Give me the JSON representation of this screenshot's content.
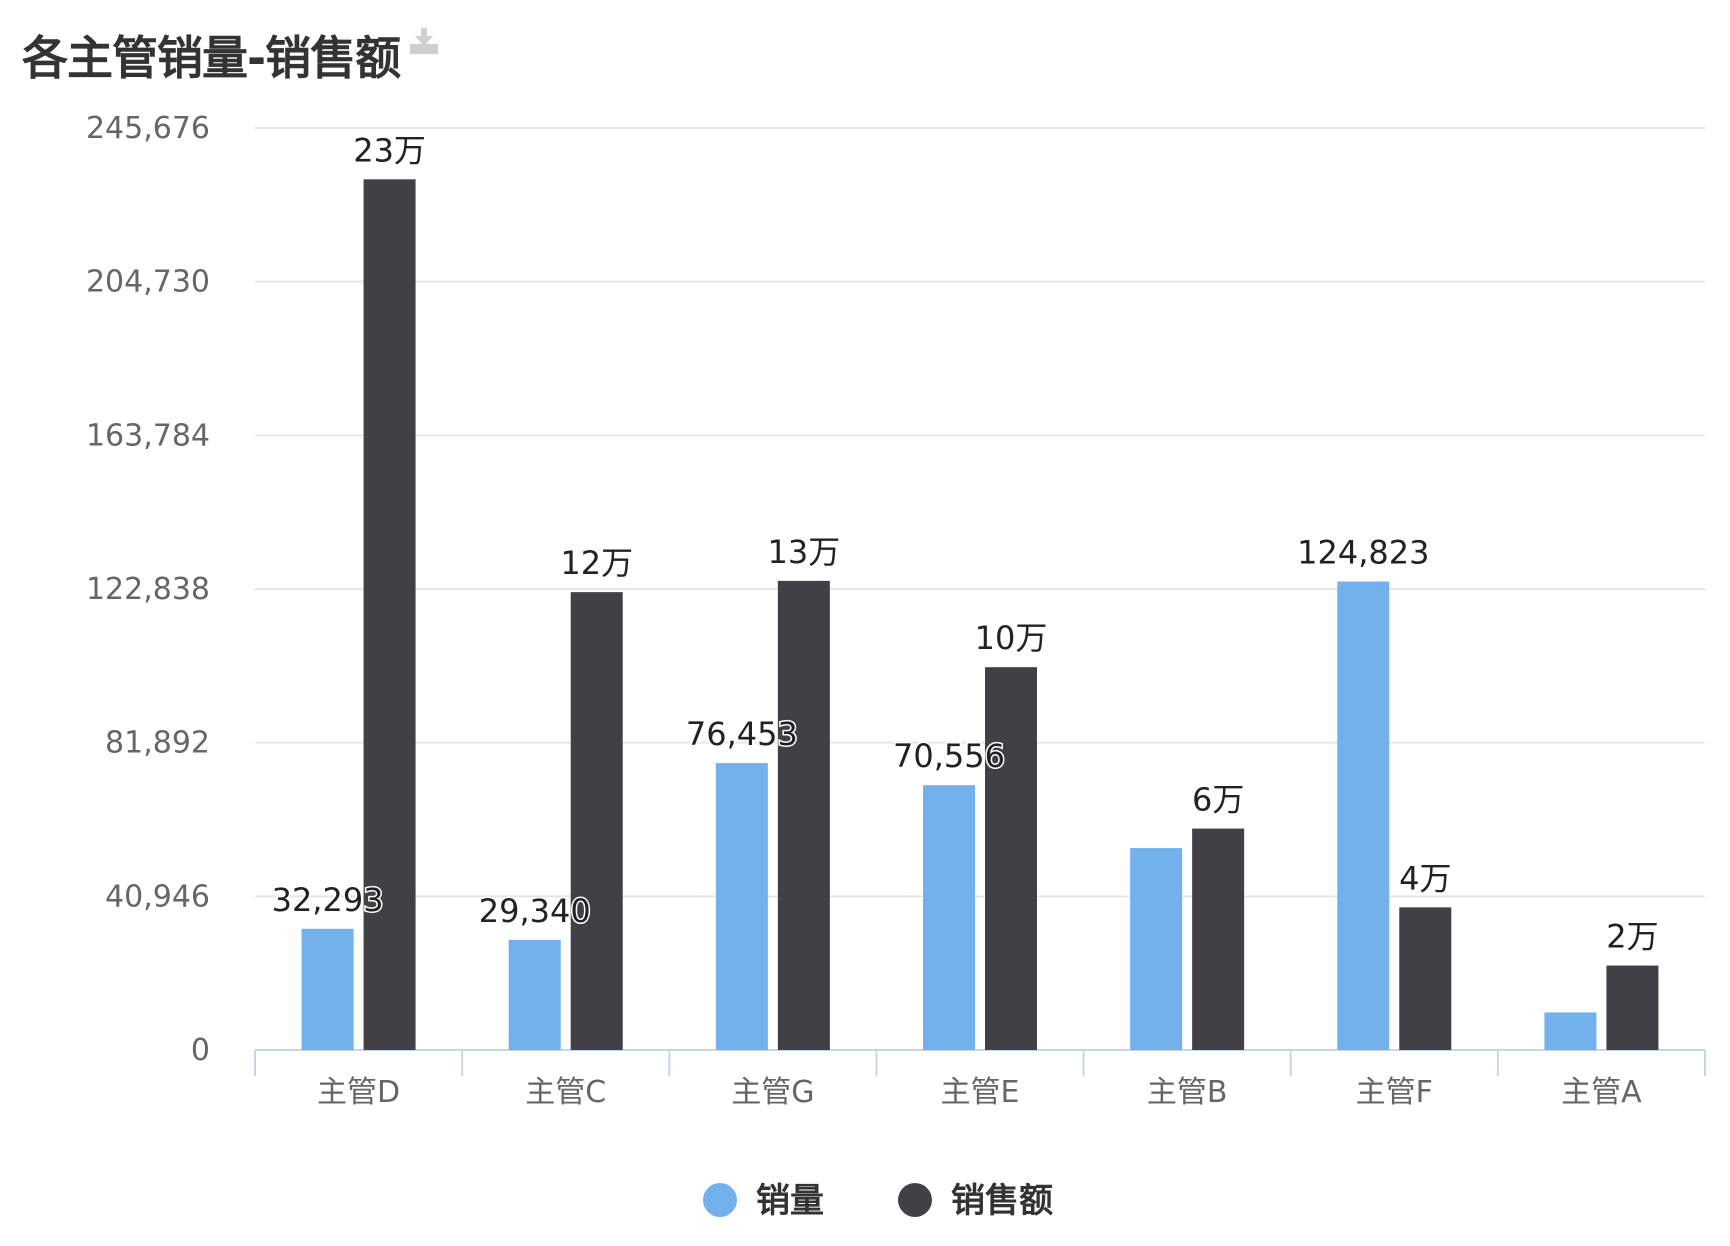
{
  "header": {
    "title": "各主管销量-销售额",
    "download_icon": "download-icon"
  },
  "chart_data": {
    "type": "bar",
    "title": "各主管销量-销售额",
    "categories": [
      "主管D",
      "主管C",
      "主管G",
      "主管E",
      "主管B",
      "主管F",
      "主管A"
    ],
    "series": [
      {
        "name": "销量",
        "color": "#72b1ec",
        "values": [
          32293,
          29340,
          76453,
          70556,
          53800,
          124823,
          10000
        ],
        "labels": [
          "32,293",
          "29,340",
          "76,453",
          "70,556",
          null,
          "124,823",
          null
        ]
      },
      {
        "name": "销售额",
        "color": "#404045",
        "values": [
          232000,
          122000,
          125000,
          102000,
          59000,
          38000,
          22500
        ],
        "labels": [
          "23万",
          "12万",
          "13万",
          "10万",
          "6万",
          "4万",
          "2万"
        ]
      }
    ],
    "ylim": [
      0,
      245676
    ],
    "yticks": [
      0,
      40946,
      81892,
      122838,
      163784,
      204730,
      245676
    ],
    "ytick_labels": [
      "0",
      "40,946",
      "81,892",
      "122,838",
      "163,784",
      "204,730",
      "245,676"
    ],
    "grid": true,
    "legend_position": "bottom-center"
  }
}
